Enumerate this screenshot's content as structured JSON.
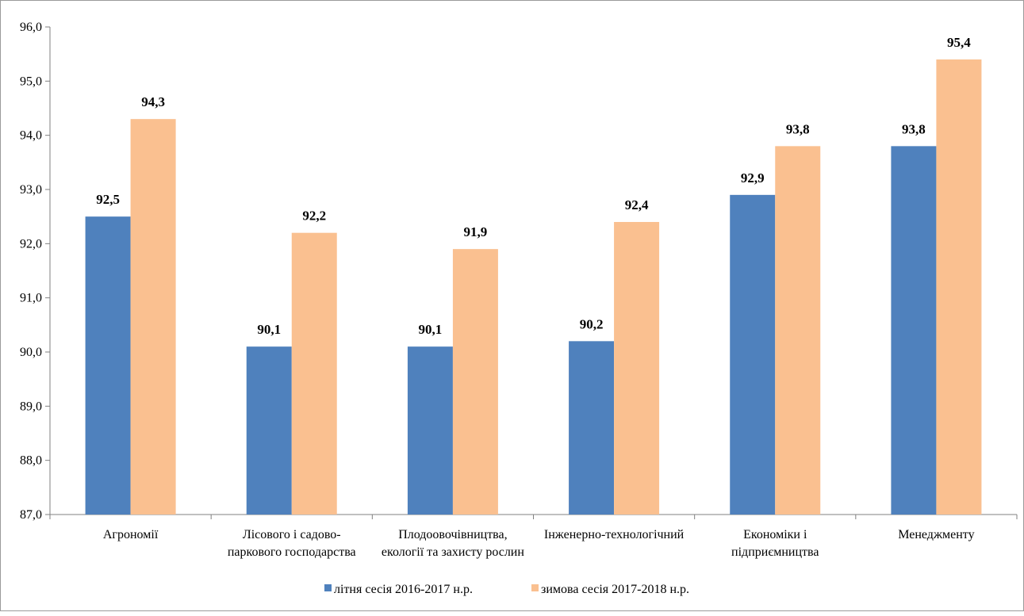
{
  "chart_data": {
    "type": "bar",
    "title": "",
    "xlabel": "",
    "ylabel": "",
    "ylim": [
      87.0,
      96.0
    ],
    "ytick_step": 1.0,
    "yticks": [
      "87,0",
      "88,0",
      "89,0",
      "90,0",
      "91,0",
      "92,0",
      "93,0",
      "94,0",
      "95,0",
      "96,0"
    ],
    "grid": false,
    "legend_position": "bottom",
    "categories": [
      [
        "Агрономії"
      ],
      [
        "Лісового і садово-",
        "паркового господарства"
      ],
      [
        "Плодоовочівництва,",
        "екології та захисту рослин"
      ],
      [
        "Інженерно-технологічний"
      ],
      [
        "Економіки і",
        "підприємництва"
      ],
      [
        "Менеджменту"
      ]
    ],
    "series": [
      {
        "name": "літня сесія 2016-2017  н.р.",
        "color": "#4f81bd",
        "values": [
          92.5,
          90.1,
          90.1,
          90.2,
          92.9,
          93.8
        ],
        "labels": [
          "92,5",
          "90,1",
          "90,1",
          "90,2",
          "92,9",
          "93,8"
        ]
      },
      {
        "name": "зимова сесія 2017-2018  н.р.",
        "color": "#fac090",
        "values": [
          94.3,
          92.2,
          91.9,
          92.4,
          93.8,
          95.4
        ],
        "labels": [
          "94,3",
          "92,2",
          "91,9",
          "92,4",
          "93,8",
          "95,4"
        ]
      }
    ]
  }
}
